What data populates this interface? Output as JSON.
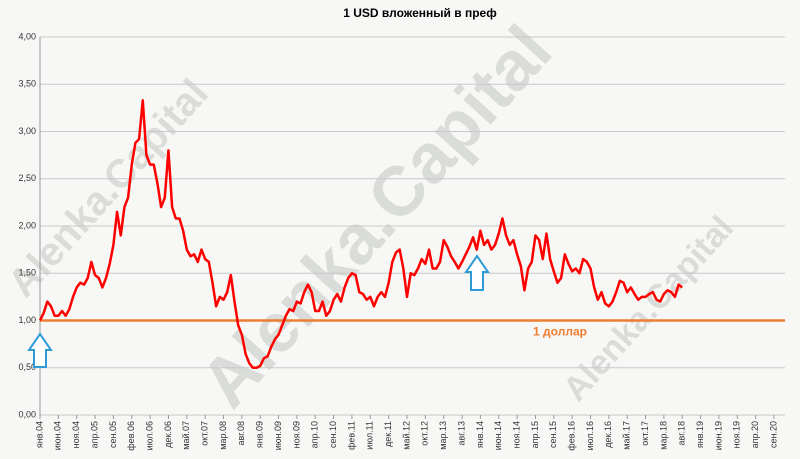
{
  "chart_data": {
    "type": "line",
    "title": "1 USD вложенный в преф",
    "watermark": "Alenka.Capital",
    "categories": [
      "янв.04",
      null,
      null,
      null,
      null,
      "июн.04",
      null,
      null,
      null,
      null,
      "ноя.04",
      null,
      null,
      null,
      null,
      "апр.05",
      null,
      null,
      null,
      null,
      "сен.05",
      null,
      null,
      null,
      null,
      "фев.06",
      null,
      null,
      null,
      null,
      "июл.06",
      null,
      null,
      null,
      null,
      "дек.06",
      null,
      null,
      null,
      null,
      "май.07",
      null,
      null,
      null,
      null,
      "окт.07",
      null,
      null,
      null,
      null,
      "мар.08",
      null,
      null,
      null,
      null,
      "авг.08",
      null,
      null,
      null,
      null,
      "янв.09",
      null,
      null,
      null,
      null,
      "июн.09",
      null,
      null,
      null,
      null,
      "ноя.09",
      null,
      null,
      null,
      null,
      "апр.10",
      null,
      null,
      null,
      null,
      "сен.10",
      null,
      null,
      null,
      null,
      "фев.11",
      null,
      null,
      null,
      null,
      "июл.11",
      null,
      null,
      null,
      null,
      "дек.11",
      null,
      null,
      null,
      null,
      "май.12",
      null,
      null,
      null,
      null,
      "окт.12",
      null,
      null,
      null,
      null,
      "мар.13",
      null,
      null,
      null,
      null,
      "авг.13",
      null,
      null,
      null,
      null,
      "янв.14",
      null,
      null,
      null,
      null,
      "июн.14",
      null,
      null,
      null,
      null,
      "ноя.14",
      null,
      null,
      null,
      null,
      "апр.15",
      null,
      null,
      null,
      null,
      "сен.15",
      null,
      null,
      null,
      null,
      "фев.16",
      null,
      null,
      null,
      null,
      "июл.16",
      null,
      null,
      null,
      null,
      "дек.16",
      null,
      null,
      null,
      null,
      "май.17",
      null,
      null,
      null,
      null,
      "окт.17",
      null,
      null,
      null,
      null,
      "мар.18",
      null,
      null,
      null,
      null,
      "авг.18",
      null,
      null,
      null,
      null,
      "янв.19",
      null,
      null,
      null,
      null,
      "июн.19",
      null,
      null,
      null,
      null,
      "ноя.19",
      null,
      null,
      null,
      null,
      "апр.20",
      null,
      null,
      null,
      null,
      "сен.20",
      null,
      null,
      null
    ],
    "series": [
      {
        "name": "1 USD",
        "color": "#ff0000",
        "values": [
          1.0,
          1.08,
          1.2,
          1.15,
          1.05,
          1.05,
          1.1,
          1.05,
          1.12,
          1.25,
          1.35,
          1.4,
          1.38,
          1.45,
          1.62,
          1.48,
          1.45,
          1.35,
          1.45,
          1.6,
          1.8,
          2.15,
          1.9,
          2.2,
          2.3,
          2.65,
          2.88,
          2.92,
          3.33,
          2.75,
          2.65,
          2.65,
          2.45,
          2.2,
          2.3,
          2.8,
          2.2,
          2.08,
          2.08,
          1.95,
          1.75,
          1.68,
          1.7,
          1.62,
          1.75,
          1.65,
          1.62,
          1.4,
          1.15,
          1.25,
          1.22,
          1.3,
          1.48,
          1.2,
          0.95,
          0.85,
          0.65,
          0.55,
          0.5,
          0.5,
          0.52,
          0.6,
          0.62,
          0.72,
          0.8,
          0.85,
          0.95,
          1.05,
          1.12,
          1.1,
          1.2,
          1.18,
          1.3,
          1.38,
          1.3,
          1.1,
          1.1,
          1.2,
          1.05,
          1.1,
          1.22,
          1.28,
          1.2,
          1.35,
          1.45,
          1.5,
          1.48,
          1.3,
          1.28,
          1.22,
          1.25,
          1.15,
          1.25,
          1.3,
          1.25,
          1.4,
          1.62,
          1.72,
          1.75,
          1.55,
          1.25,
          1.5,
          1.48,
          1.55,
          1.65,
          1.6,
          1.75,
          1.55,
          1.55,
          1.62,
          1.85,
          1.78,
          1.68,
          1.62,
          1.55,
          1.62,
          1.7,
          1.78,
          1.88,
          1.75,
          1.95,
          1.8,
          1.85,
          1.75,
          1.8,
          1.92,
          2.08,
          1.9,
          1.8,
          1.85,
          1.7,
          1.58,
          1.32,
          1.55,
          1.62,
          1.9,
          1.85,
          1.65,
          1.92,
          1.65,
          1.52,
          1.4,
          1.45,
          1.7,
          1.6,
          1.52,
          1.55,
          1.5,
          1.65,
          1.62,
          1.55,
          1.35,
          1.22,
          1.3,
          1.18,
          1.15,
          1.2,
          1.3,
          1.42,
          1.4,
          1.3,
          1.35,
          1.28,
          1.22,
          1.25,
          1.25,
          1.28,
          1.3,
          1.22,
          1.2,
          1.28,
          1.32,
          1.3,
          1.25,
          1.38,
          1.35,
          null,
          null,
          null,
          null,
          null,
          null,
          null,
          null,
          null,
          null,
          null,
          null,
          null,
          null,
          null,
          null,
          null,
          null,
          null,
          null,
          null,
          null,
          null,
          null,
          null,
          null,
          null,
          null
        ]
      }
    ],
    "reference_line": {
      "value": 1,
      "label": "1 доллар",
      "color": "#ed7d31"
    },
    "ylim": [
      0,
      4
    ],
    "yticks": [
      {
        "value": 0,
        "label": "0,00"
      },
      {
        "value": 0.5,
        "label": "0,50"
      },
      {
        "value": 1,
        "label": "1,00"
      },
      {
        "value": 1.5,
        "label": "1,50"
      },
      {
        "value": 2,
        "label": "2,00"
      },
      {
        "value": 2.5,
        "label": "2,50"
      },
      {
        "value": 3,
        "label": "3,00"
      },
      {
        "value": 3.5,
        "label": "3,50"
      },
      {
        "value": 4,
        "label": "4,00"
      }
    ],
    "grid": true
  }
}
